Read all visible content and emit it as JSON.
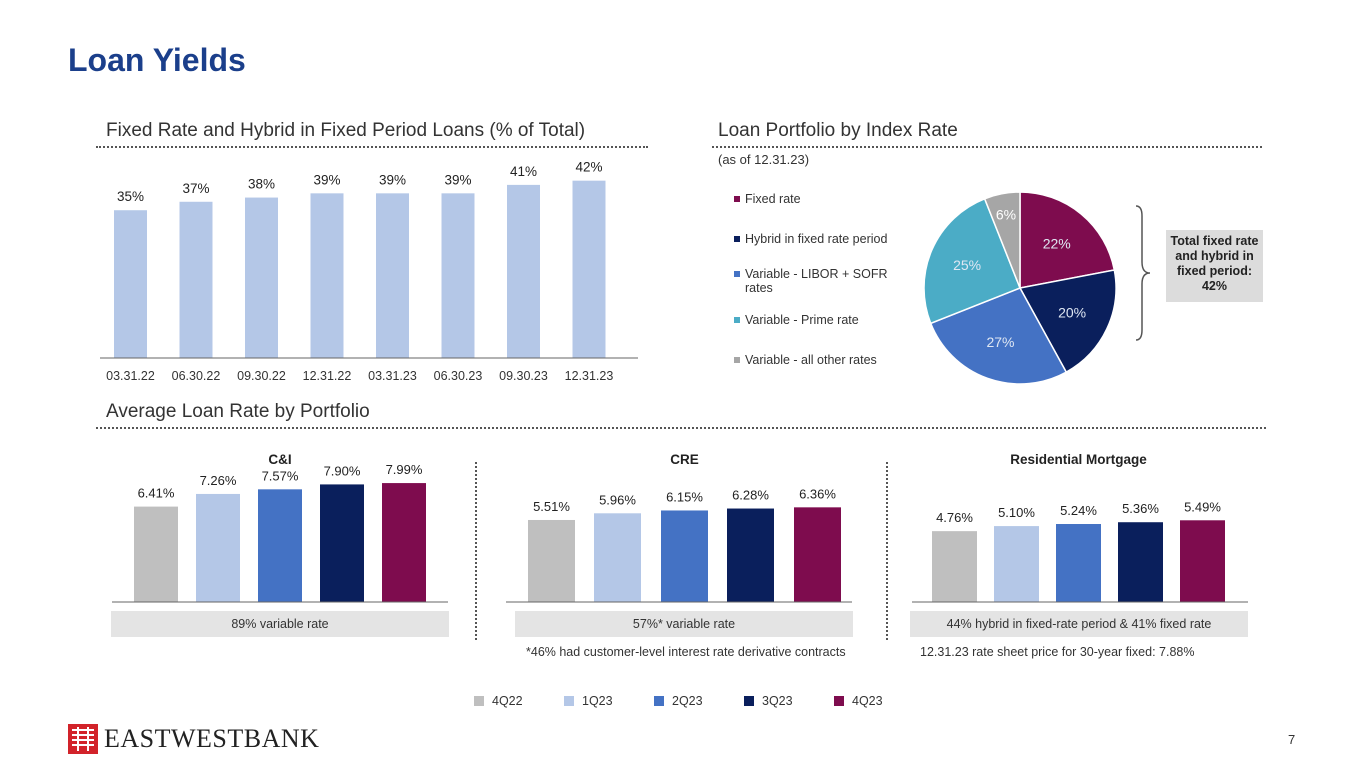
{
  "title": "Loan Yields",
  "page_number": "7",
  "logo": {
    "text": "EASTWESTBANK"
  },
  "colors": {
    "title": "#1b3f8b",
    "brand_red": "#d2232a",
    "bar_light": "#b4c7e7",
    "q4_22": "#bfbfbf",
    "q1_23": "#b4c7e7",
    "q2_23": "#4472c4",
    "q3_23": "#0a1f5c",
    "q4_23": "#7e0c4e",
    "pie_variable_prime": "#4bacc6"
  },
  "section_fixed": {
    "title": "Fixed Rate and Hybrid in Fixed Period Loans (% of Total)"
  },
  "section_pie": {
    "title": "Loan Portfolio by Index Rate",
    "subtitle": "(as of 12.31.23)",
    "callout": "Total fixed rate and hybrid in fixed period: 42%"
  },
  "section_avg": {
    "title": "Average Loan Rate by Portfolio"
  },
  "notes": {
    "cre_footnote": "*46% had customer-level interest rate derivative contracts",
    "mortgage_footnote": "12.31.23 rate sheet price for 30-year fixed: 7.88%"
  },
  "chart_data": [
    {
      "type": "bar",
      "title": "Fixed Rate and Hybrid in Fixed Period Loans (% of Total)",
      "categories": [
        "03.31.22",
        "06.30.22",
        "09.30.22",
        "12.31.22",
        "03.31.23",
        "06.30.23",
        "09.30.23",
        "12.31.23"
      ],
      "values": [
        35,
        37,
        38,
        39,
        39,
        39,
        41,
        42
      ],
      "labels": [
        "35%",
        "37%",
        "38%",
        "39%",
        "39%",
        "39%",
        "41%",
        "42%"
      ],
      "ylim": [
        0,
        45
      ]
    },
    {
      "type": "pie",
      "title": "Loan Portfolio by Index Rate",
      "legend": [
        "Fixed rate",
        "Hybrid in fixed rate period",
        "Variable - LIBOR + SOFR rates",
        "Variable - Prime rate",
        "Variable - all other rates"
      ],
      "values": [
        22,
        20,
        27,
        25,
        6
      ],
      "labels": [
        "22%",
        "20%",
        "27%",
        "25%",
        "6%"
      ],
      "colors": [
        "#7e0c4e",
        "#0a1f5c",
        "#4472c4",
        "#4bacc6",
        "#a6a6a6"
      ]
    },
    {
      "type": "bar",
      "title": "C&I",
      "categories": [
        "4Q22",
        "1Q23",
        "2Q23",
        "3Q23",
        "4Q23"
      ],
      "values": [
        6.41,
        7.26,
        7.57,
        7.9,
        7.99
      ],
      "labels": [
        "6.41%",
        "7.26%",
        "7.57%",
        "7.90%",
        "7.99%"
      ],
      "footer": "89% variable rate",
      "ylim": [
        0,
        8.6
      ]
    },
    {
      "type": "bar",
      "title": "CRE",
      "categories": [
        "4Q22",
        "1Q23",
        "2Q23",
        "3Q23",
        "4Q23"
      ],
      "values": [
        5.51,
        5.96,
        6.15,
        6.28,
        6.36
      ],
      "labels": [
        "5.51%",
        "5.96%",
        "6.15%",
        "6.28%",
        "6.36%"
      ],
      "footer": "57%* variable rate",
      "ylim": [
        0,
        8.6
      ]
    },
    {
      "type": "bar",
      "title": "Residential Mortgage",
      "categories": [
        "4Q22",
        "1Q23",
        "2Q23",
        "3Q23",
        "4Q23"
      ],
      "values": [
        4.76,
        5.1,
        5.24,
        5.36,
        5.49
      ],
      "labels": [
        "4.76%",
        "5.10%",
        "5.24%",
        "5.36%",
        "5.49%"
      ],
      "footer": "44% hybrid in fixed-rate period & 41% fixed rate",
      "ylim": [
        0,
        8.6
      ]
    }
  ],
  "series_legend": [
    "4Q22",
    "1Q23",
    "2Q23",
    "3Q23",
    "4Q23"
  ]
}
